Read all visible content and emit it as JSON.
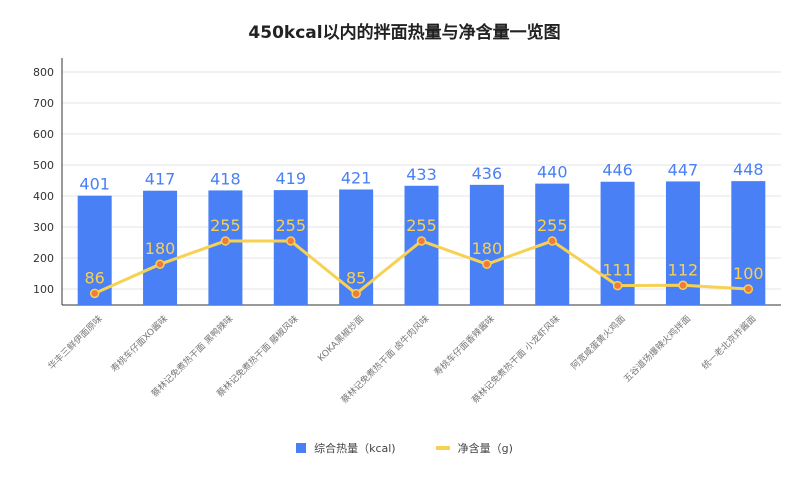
{
  "chart_data": {
    "type": "bar",
    "title": "450kcal以内的拌面热量与净含量一览图",
    "categories": [
      "华丰三鲜伊面原味",
      "寿桃车仔面XO酱味",
      "蔡林记免煮热干面 黑鸭辣味",
      "蔡林记免煮热干面 藤椒风味",
      "KOKA黑椒炒面",
      "蔡林记免煮热干面 卤牛肉风味",
      "寿桃车仔面香辣酱味",
      "蔡林记免煮热干面 小龙虾风味",
      "阿宽咸蛋黄火鸡面",
      "五谷道场爆辣火鸡拌面",
      "统一老北京炸酱面"
    ],
    "series": [
      {
        "name": "综合热量（kcal)",
        "type": "bar",
        "color": "#4a80f5",
        "values": [
          401,
          417,
          418,
          419,
          421,
          433,
          436,
          440,
          446,
          447,
          448
        ]
      },
      {
        "name": "净含量（g)",
        "type": "line",
        "color": "#f7d154",
        "values": [
          86,
          180,
          255,
          255,
          85,
          255,
          180,
          255,
          111,
          112,
          100
        ]
      }
    ],
    "yticks": [
      100,
      200,
      300,
      400,
      500,
      600,
      700,
      800
    ],
    "ylim": [
      50,
      820
    ],
    "grid": true,
    "legend_position": "bottom"
  }
}
